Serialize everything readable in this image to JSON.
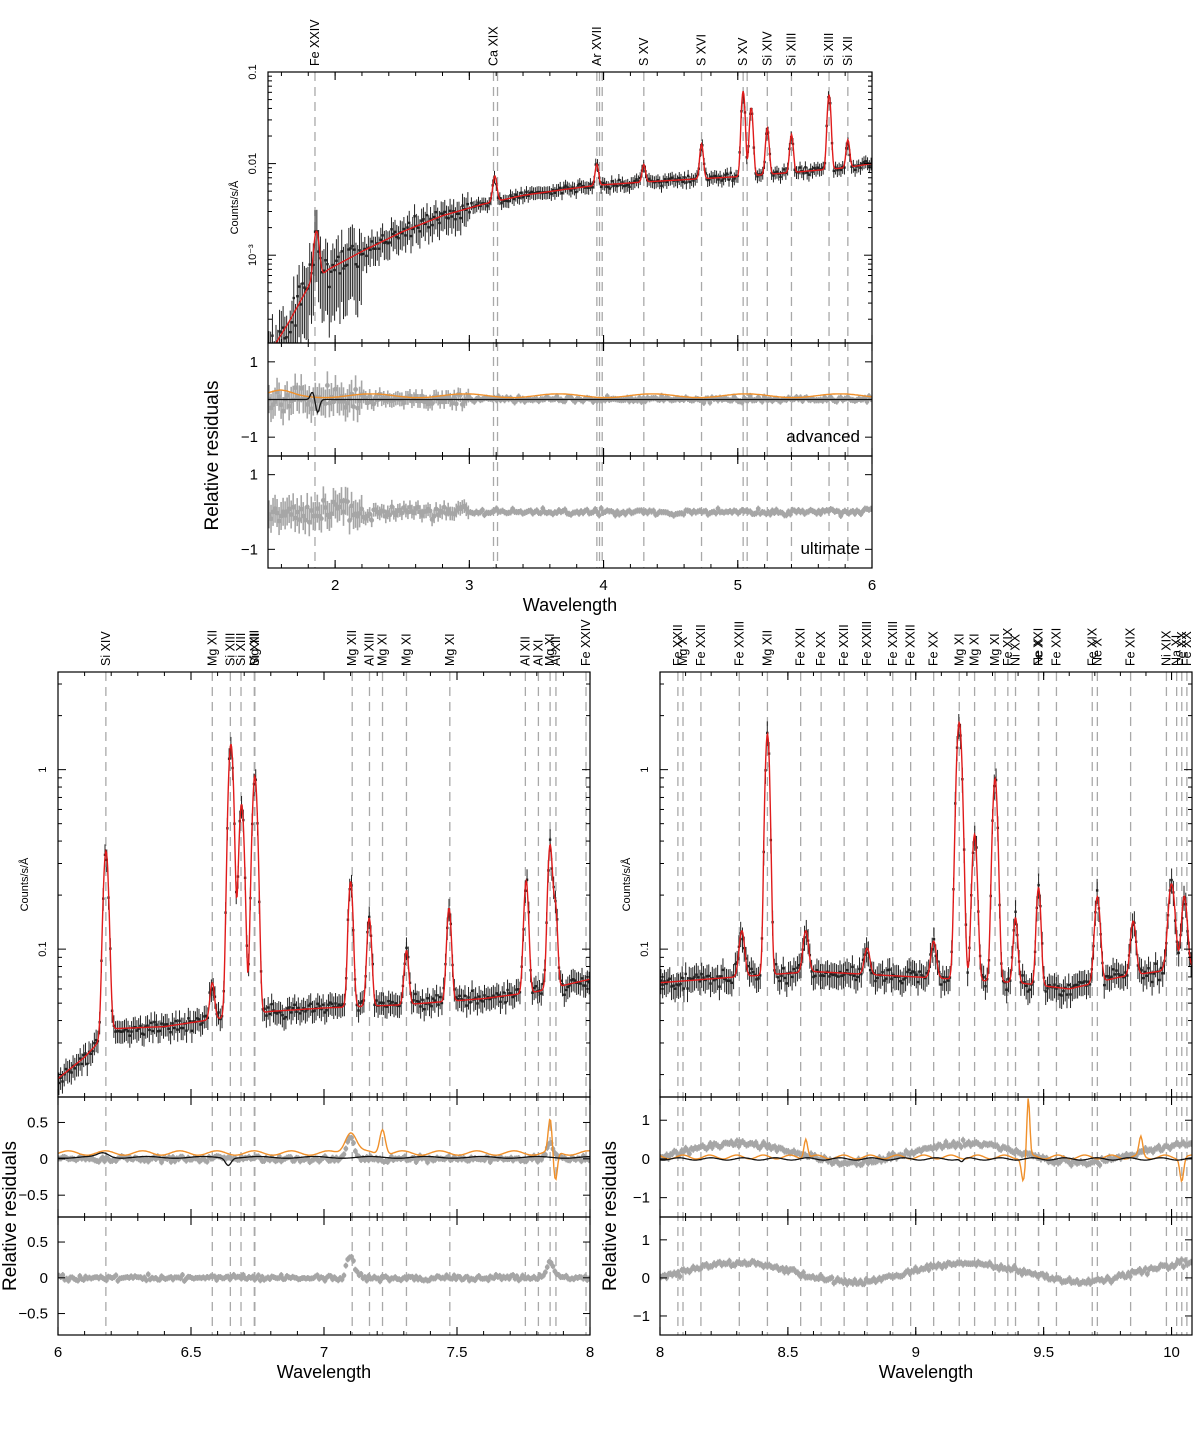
{
  "colors": {
    "data": "#222222",
    "model": "#e01b1b",
    "residual_points": "#a6a6a6",
    "advanced_curve": "#111111",
    "ultimate_curve": "#f0902a",
    "line_marker": "#a9a9a9"
  },
  "chart_data": [
    {
      "type": "line",
      "name": "top",
      "xlabel": "Wavelength",
      "xlim": [
        1.5,
        6
      ],
      "x_ticks": [
        2,
        3,
        4,
        5,
        6
      ],
      "spectrum": {
        "ylabel": "Counts/s/Å",
        "yscale": "log",
        "ylim": [
          0.00011,
          0.1
        ],
        "y_ticks": [
          {
            "v": 0.1,
            "t": "0.1"
          },
          {
            "v": 0.01,
            "t": "0.01"
          },
          {
            "v": 0.001,
            "t": "10⁻³"
          }
        ],
        "continuum": [
          [
            1.5,
            8e-05
          ],
          [
            1.65,
            0.00018
          ],
          [
            1.8,
            0.00045
          ],
          [
            1.95,
            0.0007
          ],
          [
            2.2,
            0.0011
          ],
          [
            2.5,
            0.0018
          ],
          [
            2.8,
            0.0027
          ],
          [
            3.1,
            0.0036
          ],
          [
            3.4,
            0.0045
          ],
          [
            3.7,
            0.0052
          ],
          [
            3.95,
            0.0058
          ],
          [
            4.3,
            0.0063
          ],
          [
            4.7,
            0.0068
          ],
          [
            5.0,
            0.0072
          ],
          [
            5.4,
            0.008
          ],
          [
            5.8,
            0.009
          ],
          [
            6.0,
            0.01
          ]
        ],
        "peaks": [
          [
            1.86,
            2.4,
            0.018
          ],
          [
            3.19,
            0.9,
            0.014
          ],
          [
            3.95,
            0.7,
            0.012
          ],
          [
            4.3,
            0.55,
            0.012
          ],
          [
            4.73,
            1.4,
            0.012
          ],
          [
            5.04,
            7.5,
            0.012
          ],
          [
            5.1,
            4.5,
            0.012
          ],
          [
            5.22,
            2.2,
            0.012
          ],
          [
            5.4,
            1.6,
            0.012
          ],
          [
            5.68,
            5.5,
            0.012
          ],
          [
            5.82,
            1.0,
            0.012
          ]
        ]
      },
      "residuals_advanced": {
        "panel_label": "advanced",
        "ylim": [
          -1.5,
          1.5
        ],
        "y_ticks": [
          {
            "v": 1,
            "t": "1"
          },
          {
            "v": -1,
            "t": "−1"
          }
        ]
      },
      "residuals_ultimate": {
        "panel_label": "ultimate",
        "ylim": [
          -1.5,
          1.5
        ],
        "y_ticks": [
          {
            "v": 1,
            "t": "1"
          },
          {
            "v": -1,
            "t": "−1"
          }
        ]
      },
      "residual_axis_title": "Relative residuals",
      "lines": [
        {
          "label": "Fe XXIV",
          "x": 1.85
        },
        {
          "label": "Ca XIX",
          "x": 3.18
        },
        {
          "label": "",
          "x": 3.21
        },
        {
          "label": "Ar XVII",
          "x": 3.95
        },
        {
          "label": "",
          "x": 3.97
        },
        {
          "label": "",
          "x": 3.99
        },
        {
          "label": "S XV",
          "x": 4.3
        },
        {
          "label": "S XVI",
          "x": 4.73
        },
        {
          "label": "S XV",
          "x": 5.04
        },
        {
          "label": "",
          "x": 5.07
        },
        {
          "label": "Si XIV",
          "x": 5.22
        },
        {
          "label": "Si XIII",
          "x": 5.4
        },
        {
          "label": "Si XIII",
          "x": 5.68
        },
        {
          "label": "Si XII",
          "x": 5.82
        }
      ]
    },
    {
      "type": "line",
      "name": "bottom-left",
      "xlabel": "Wavelength",
      "xlim": [
        6,
        8
      ],
      "x_ticks": [
        6,
        6.5,
        7,
        7.5,
        8
      ],
      "spectrum": {
        "ylabel": "Counts/s/Å",
        "yscale": "log",
        "ylim": [
          0.015,
          3.5
        ],
        "y_ticks": [
          {
            "v": 1,
            "t": "1"
          },
          {
            "v": 0.1,
            "t": "0.1"
          }
        ],
        "continuum": [
          [
            6.0,
            0.019
          ],
          [
            6.1,
            0.025
          ],
          [
            6.2,
            0.036
          ],
          [
            6.4,
            0.037
          ],
          [
            6.6,
            0.041
          ],
          [
            6.8,
            0.045
          ],
          [
            7.0,
            0.047
          ],
          [
            7.3,
            0.049
          ],
          [
            7.6,
            0.053
          ],
          [
            7.8,
            0.058
          ],
          [
            8.0,
            0.068
          ]
        ],
        "peaks": [
          [
            6.18,
            9.5,
            0.009
          ],
          [
            6.58,
            0.6,
            0.008
          ],
          [
            6.65,
            32,
            0.009
          ],
          [
            6.69,
            14,
            0.009
          ],
          [
            6.74,
            20,
            0.009
          ],
          [
            7.1,
            4.0,
            0.008
          ],
          [
            7.17,
            2.1,
            0.008
          ],
          [
            7.31,
            1.0,
            0.008
          ],
          [
            7.47,
            2.3,
            0.008
          ],
          [
            7.76,
            3.2,
            0.008
          ],
          [
            7.85,
            5.3,
            0.008
          ],
          [
            7.87,
            1.8,
            0.007
          ]
        ]
      },
      "residuals_advanced": {
        "panel_label": "",
        "ylim": [
          -0.8,
          0.85
        ],
        "y_ticks": [
          {
            "v": 0.5,
            "t": "0.5"
          },
          {
            "v": 0,
            "t": "0"
          },
          {
            "v": -0.5,
            "t": "−0.5"
          }
        ]
      },
      "residuals_ultimate": {
        "panel_label": "",
        "ylim": [
          -0.8,
          0.85
        ],
        "y_ticks": [
          {
            "v": 0.5,
            "t": "0.5"
          },
          {
            "v": 0,
            "t": "0"
          },
          {
            "v": -0.5,
            "t": "−0.5"
          }
        ]
      },
      "residual_axis_title": "Relative residuals",
      "lines": [
        {
          "label": "Si XIV",
          "x": 6.18
        },
        {
          "label": "Mg XII",
          "x": 6.58
        },
        {
          "label": "Si XIII",
          "x": 6.648
        },
        {
          "label": "Si XIII",
          "x": 6.688
        },
        {
          "label": "Mg XII",
          "x": 6.738
        },
        {
          "label": "Si XIII",
          "x": 6.74
        },
        {
          "label": "Mg XII",
          "x": 7.106
        },
        {
          "label": "Al XIII",
          "x": 7.171
        },
        {
          "label": "Mg XI",
          "x": 7.22
        },
        {
          "label": "Mg XI",
          "x": 7.31
        },
        {
          "label": "Mg XI",
          "x": 7.473
        },
        {
          "label": "Al XII",
          "x": 7.757
        },
        {
          "label": "Al XI",
          "x": 7.806
        },
        {
          "label": "Mg XI",
          "x": 7.85
        },
        {
          "label": "Al XII",
          "x": 7.872
        },
        {
          "label": "Fe XXIV",
          "x": 7.985
        }
      ]
    },
    {
      "type": "line",
      "name": "bottom-right",
      "xlabel": "Wavelength",
      "xlim": [
        8,
        10.08
      ],
      "x_ticks": [
        8,
        8.5,
        9,
        9.5,
        10
      ],
      "spectrum": {
        "ylabel": "Counts/s/Å",
        "yscale": "log",
        "ylim": [
          0.015,
          3.5
        ],
        "y_ticks": [
          {
            "v": 1,
            "t": "1"
          },
          {
            "v": 0.1,
            "t": "0.1"
          }
        ],
        "continuum": [
          [
            8.0,
            0.065
          ],
          [
            8.3,
            0.07
          ],
          [
            8.6,
            0.075
          ],
          [
            9.0,
            0.07
          ],
          [
            9.4,
            0.065
          ],
          [
            9.6,
            0.06
          ],
          [
            9.8,
            0.07
          ],
          [
            10.08,
            0.08
          ]
        ],
        "peaks": [
          [
            8.42,
            21,
            0.008
          ],
          [
            8.32,
            0.8,
            0.01
          ],
          [
            8.57,
            0.7,
            0.01
          ],
          [
            8.81,
            0.4,
            0.01
          ],
          [
            9.07,
            0.6,
            0.01
          ],
          [
            9.17,
            26,
            0.01
          ],
          [
            9.23,
            5.5,
            0.009
          ],
          [
            9.31,
            12.5,
            0.009
          ],
          [
            9.39,
            1.3,
            0.008
          ],
          [
            9.48,
            2.5,
            0.008
          ],
          [
            9.71,
            2.0,
            0.01
          ],
          [
            9.85,
            1.0,
            0.01
          ],
          [
            10.0,
            2.0,
            0.012
          ],
          [
            10.05,
            1.5,
            0.01
          ]
        ]
      },
      "residuals_advanced": {
        "panel_label": "",
        "ylim": [
          -1.5,
          1.6
        ],
        "y_ticks": [
          {
            "v": 1,
            "t": "1"
          },
          {
            "v": 0,
            "t": "0"
          },
          {
            "v": -1,
            "t": "−1"
          }
        ]
      },
      "residuals_ultimate": {
        "panel_label": "",
        "ylim": [
          -1.5,
          1.6
        ],
        "y_ticks": [
          {
            "v": 1,
            "t": "1"
          },
          {
            "v": 0,
            "t": "0"
          },
          {
            "v": -1,
            "t": "−1"
          }
        ]
      },
      "residual_axis_title": "Relative residuals",
      "lines": [
        {
          "label": "Fe XXII",
          "x": 8.07
        },
        {
          "label": "Mg X",
          "x": 8.09
        },
        {
          "label": "Fe XXII",
          "x": 8.16
        },
        {
          "label": "Fe XXIII",
          "x": 8.31
        },
        {
          "label": "Mg XII",
          "x": 8.42
        },
        {
          "label": "Fe XXI",
          "x": 8.55
        },
        {
          "label": "Fe XX",
          "x": 8.63
        },
        {
          "label": "Fe XXII",
          "x": 8.72
        },
        {
          "label": "Fe XXIII",
          "x": 8.81
        },
        {
          "label": "Fe XXIII",
          "x": 8.91
        },
        {
          "label": "Fe XXII",
          "x": 8.98
        },
        {
          "label": "Fe XX",
          "x": 9.07
        },
        {
          "label": "Mg XI",
          "x": 9.17
        },
        {
          "label": "Mg XI",
          "x": 9.23
        },
        {
          "label": "Mg XI",
          "x": 9.31
        },
        {
          "label": "Fe XIX",
          "x": 9.36
        },
        {
          "label": "Ni XX",
          "x": 9.39
        },
        {
          "label": "Fe XXI",
          "x": 9.48
        },
        {
          "label": "Ne X",
          "x": 9.48
        },
        {
          "label": "Fe XXI",
          "x": 9.55
        },
        {
          "label": "Fe XIX",
          "x": 9.69
        },
        {
          "label": "Ne X",
          "x": 9.71
        },
        {
          "label": "Fe XIX",
          "x": 9.84
        },
        {
          "label": "Ni XIX",
          "x": 9.98
        },
        {
          "label": "Na XI",
          "x": 10.02
        },
        {
          "label": "Fe XX",
          "x": 10.04
        },
        {
          "label": "Fe XX",
          "x": 10.06
        }
      ]
    }
  ]
}
